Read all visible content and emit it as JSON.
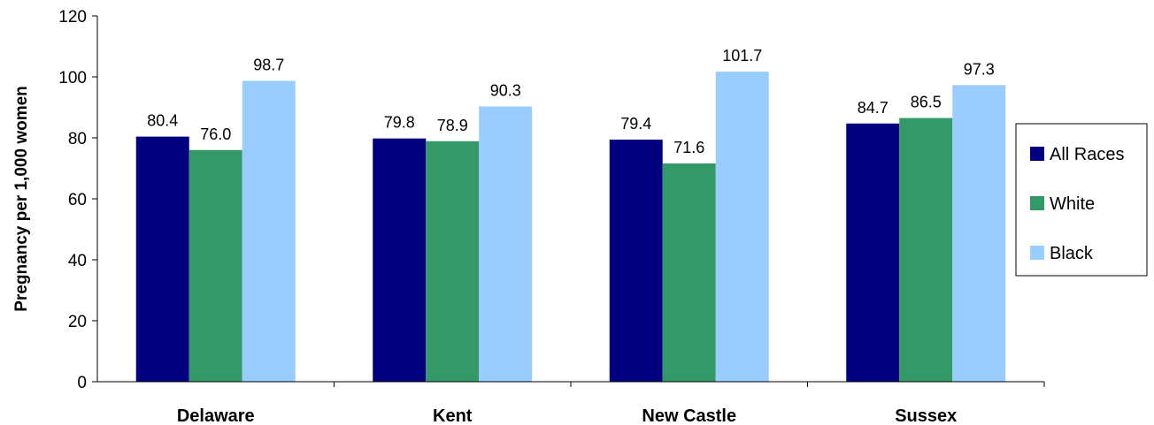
{
  "chart_data": {
    "type": "bar",
    "categories": [
      "Delaware",
      "Kent",
      "New Castle",
      "Sussex"
    ],
    "series": [
      {
        "name": "All Races",
        "color": "#000080",
        "values": [
          80.4,
          79.8,
          79.4,
          84.7
        ]
      },
      {
        "name": "White",
        "color": "#339966",
        "values": [
          76.0,
          78.9,
          71.6,
          86.5
        ]
      },
      {
        "name": "Black",
        "color": "#99CCFF",
        "values": [
          98.7,
          90.3,
          101.7,
          97.3
        ]
      }
    ],
    "data_labels": [
      [
        "80.4",
        "79.8",
        "79.4",
        "84.7"
      ],
      [
        "76.0",
        "78.9",
        "71.6",
        "86.5"
      ],
      [
        "98.7",
        "90.3",
        "101.7",
        "97.3"
      ]
    ],
    "title": "",
    "xlabel": "",
    "ylabel": "Pregnancy per 1,000 women",
    "ylim": [
      0,
      120
    ],
    "yticks": [
      0,
      20,
      40,
      60,
      80,
      100,
      120
    ],
    "grid": false,
    "legend_position": "right"
  }
}
